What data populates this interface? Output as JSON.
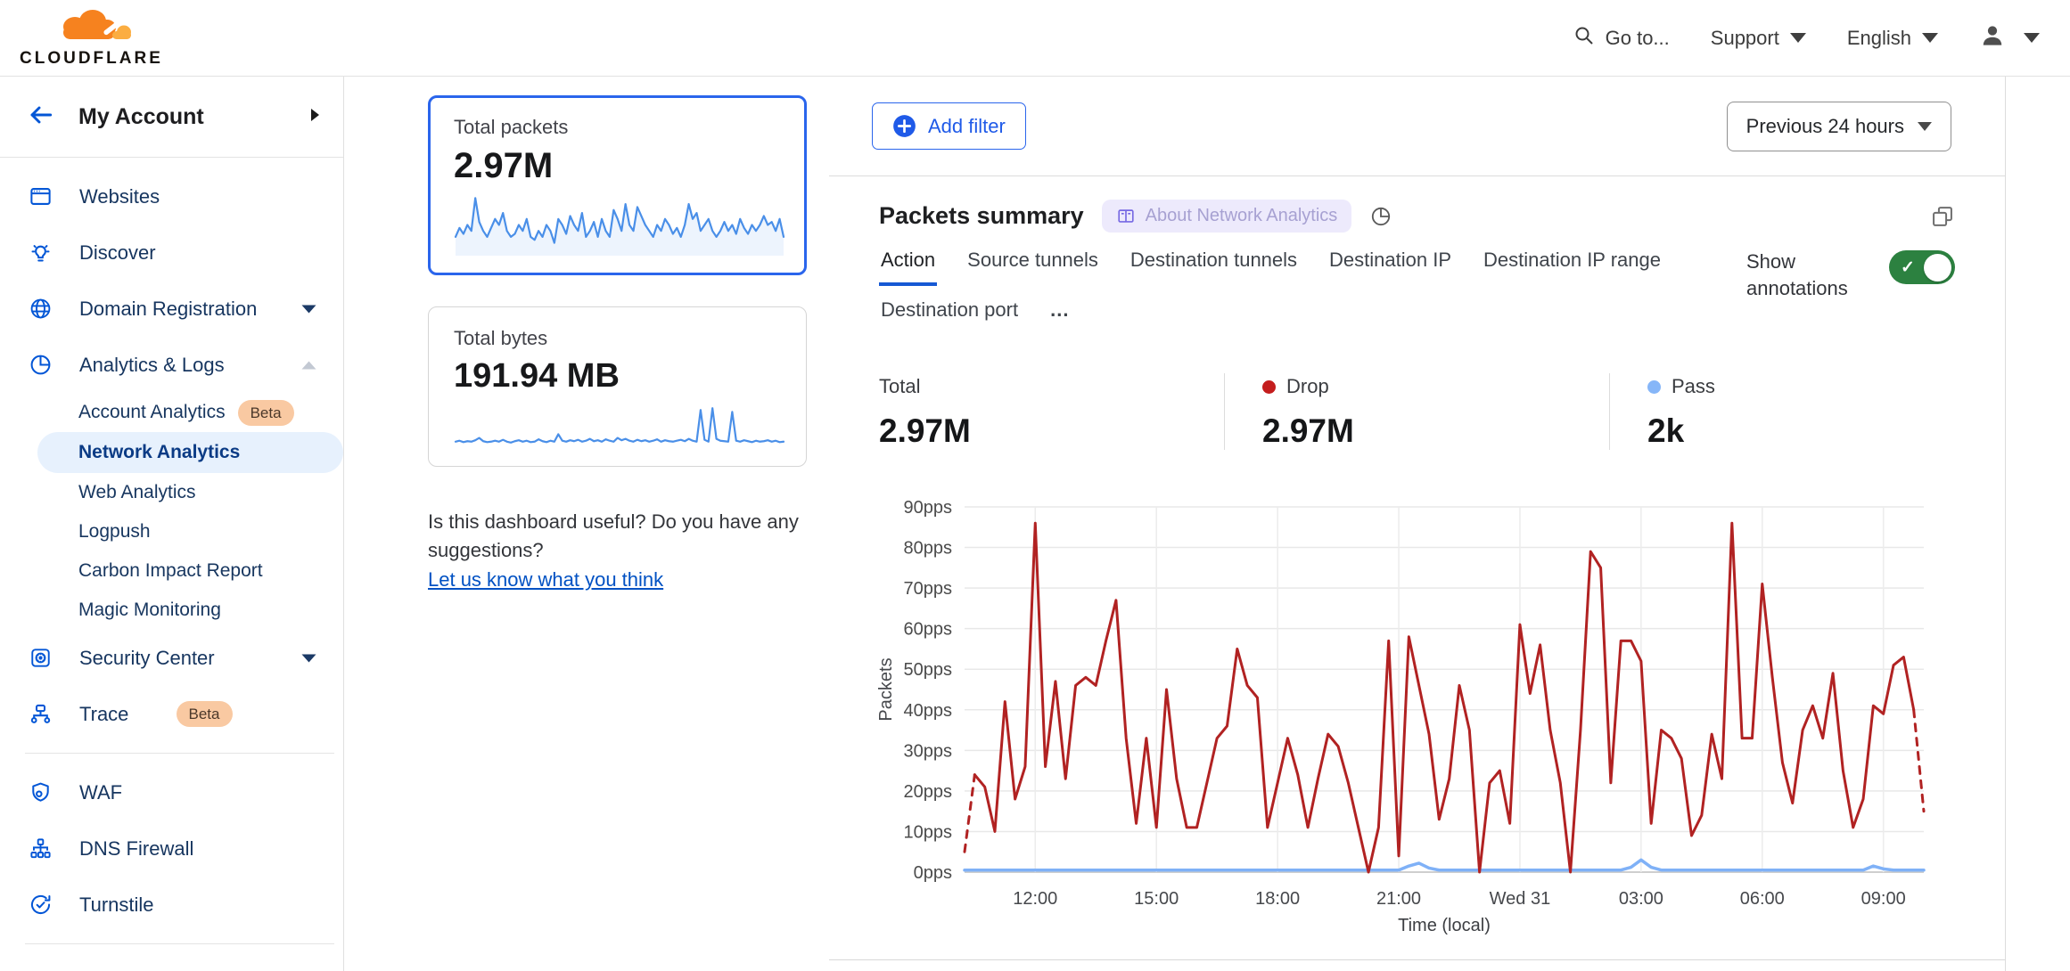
{
  "brand": {
    "name": "CLOUDFLARE"
  },
  "header": {
    "go_to": "Go to...",
    "support": "Support",
    "language": "English"
  },
  "colors": {
    "accent_blue": "#2a65ec",
    "link_blue": "#0051c3",
    "nav_blue": "#0356d6",
    "drop_red": "#b12222",
    "pass_blue": "#7fb1f7",
    "toggle_green": "#2c8140",
    "beta_badge_bg": "#f9c9a2",
    "about_pill_bg": "#edeafc"
  },
  "sidebar": {
    "back_label": "My Account",
    "sections": [
      {
        "items": [
          {
            "label": "Websites",
            "icon": "browser-window"
          },
          {
            "label": "Discover",
            "icon": "lightbulb"
          },
          {
            "label": "Domain Registration",
            "icon": "globe",
            "caret": "down"
          },
          {
            "label": "Analytics & Logs",
            "icon": "pie-chart",
            "caret": "up",
            "children": [
              {
                "label": "Account Analytics",
                "badge": "Beta"
              },
              {
                "label": "Network Analytics",
                "active": true
              },
              {
                "label": "Web Analytics"
              },
              {
                "label": "Logpush"
              },
              {
                "label": "Carbon Impact Report"
              },
              {
                "label": "Magic Monitoring"
              }
            ]
          },
          {
            "label": "Security Center",
            "icon": "security-shield",
            "caret": "down"
          },
          {
            "label": "Trace",
            "icon": "trace-tree",
            "badge": "Beta"
          }
        ]
      },
      {
        "items": [
          {
            "label": "WAF",
            "icon": "waf-shield"
          },
          {
            "label": "DNS Firewall",
            "icon": "dns-hierarchy"
          },
          {
            "label": "Turnstile",
            "icon": "turnstile-check"
          }
        ]
      },
      {
        "items": [
          {
            "label": "",
            "icon": "zero-trust-spark"
          }
        ]
      }
    ]
  },
  "overview": {
    "packets_card": {
      "label": "Total packets",
      "value": "2.97M",
      "selected": true
    },
    "bytes_card": {
      "label": "Total bytes",
      "value": "191.94 MB"
    },
    "feedback": {
      "question": "Is this dashboard useful? Do you have any suggestions?",
      "link": "Let us know what you think"
    }
  },
  "main": {
    "add_filter": "Add filter",
    "time_range": "Previous 24 hours",
    "summary": {
      "title": "Packets summary",
      "about_badge": "About Network Analytics",
      "tabs": [
        {
          "label": "Action",
          "active": true
        },
        {
          "label": "Source tunnels"
        },
        {
          "label": "Destination tunnels"
        },
        {
          "label": "Destination IP"
        },
        {
          "label": "Destination IP range"
        },
        {
          "label": "Destination port"
        },
        {
          "label": "...",
          "more": true
        }
      ],
      "show_annotations": "Show annotations",
      "stats": [
        {
          "label": "Total",
          "value": "2.97M"
        },
        {
          "label": "Drop",
          "value": "2.97M",
          "dot": "#c41d1d"
        },
        {
          "label": "Pass",
          "value": "2k",
          "dot": "#86b6f8"
        }
      ]
    }
  },
  "chart_data": [
    {
      "type": "line",
      "name": "packets-summary-chart",
      "title": "Packets summary",
      "ylabel": "Packets",
      "xlabel": "Time (local)",
      "ylim": [
        0,
        90
      ],
      "y_ticks": [
        "0pps",
        "10pps",
        "20pps",
        "30pps",
        "40pps",
        "50pps",
        "60pps",
        "70pps",
        "80pps",
        "90pps"
      ],
      "x_ticks": [
        {
          "label": "12:00",
          "index": 7
        },
        {
          "label": "15:00",
          "index": 19
        },
        {
          "label": "18:00",
          "index": 31
        },
        {
          "label": "21:00",
          "index": 43
        },
        {
          "label": "Wed 31",
          "index": 55
        },
        {
          "label": "03:00",
          "index": 67
        },
        {
          "label": "06:00",
          "index": 79
        },
        {
          "label": "09:00",
          "index": 91
        }
      ],
      "interval_minutes": 15,
      "grid": true,
      "legend_position": "none",
      "dashed_ends": true,
      "series": [
        {
          "name": "Drop",
          "color": "#b12222",
          "values": [
            5,
            24,
            21,
            10,
            42,
            18,
            26,
            86,
            26,
            47,
            23,
            46,
            48,
            46,
            57,
            67,
            33,
            12,
            33,
            11,
            45,
            23,
            11,
            11,
            22,
            33,
            36,
            55,
            46,
            43,
            11,
            22,
            33,
            24,
            11,
            23,
            34,
            31,
            22,
            11,
            0,
            11,
            57,
            4,
            58,
            46,
            34,
            13,
            23,
            46,
            35,
            0,
            22,
            25,
            12,
            61,
            44,
            56,
            35,
            22,
            0,
            35,
            79,
            75,
            22,
            57,
            57,
            52,
            12,
            35,
            33,
            28,
            9,
            14,
            34,
            23,
            86,
            33,
            33,
            71,
            48,
            27,
            17,
            35,
            41,
            33,
            49,
            25,
            11,
            18,
            41,
            39,
            51,
            53,
            40,
            15
          ]
        },
        {
          "name": "Pass",
          "color": "#7fb1f7",
          "values": [
            0.5,
            0.5,
            0.5,
            0.5,
            0.5,
            0.5,
            0.5,
            0.5,
            0.5,
            0.5,
            0.5,
            0.5,
            0.5,
            0.5,
            0.5,
            0.5,
            0.5,
            0.5,
            0.5,
            0.5,
            0.5,
            0.5,
            0.5,
            0.5,
            0.5,
            0.5,
            0.5,
            0.5,
            0.5,
            0.5,
            0.5,
            0.5,
            0.5,
            0.5,
            0.5,
            0.5,
            0.5,
            0.5,
            0.5,
            0.5,
            0.5,
            0.5,
            0.5,
            0.5,
            1.5,
            2.2,
            1.0,
            0.5,
            0.5,
            0.5,
            0.5,
            0.5,
            0.5,
            0.5,
            0.5,
            0.5,
            0.5,
            0.5,
            0.5,
            0.5,
            0.5,
            0.5,
            0.5,
            0.5,
            0.5,
            0.5,
            1.2,
            3.0,
            1.2,
            0.5,
            0.5,
            0.5,
            0.5,
            0.5,
            0.5,
            0.5,
            0.5,
            0.5,
            0.5,
            0.5,
            0.5,
            0.5,
            0.5,
            0.5,
            0.5,
            0.5,
            0.5,
            0.5,
            0.5,
            0.5,
            1.5,
            0.8,
            0.5,
            0.5,
            0.5,
            0.5
          ]
        }
      ]
    },
    {
      "type": "line",
      "name": "total-packets-sparkline",
      "color": "#4a8fe8",
      "fill": "rgba(74,143,232,0.10)",
      "ymax": 10,
      "values": [
        3,
        4.5,
        3.5,
        5,
        4,
        9.5,
        5.5,
        4,
        3,
        4.5,
        6,
        5,
        7,
        4,
        3,
        3.5,
        5,
        4,
        6,
        3,
        2.5,
        4,
        3,
        5,
        4,
        2,
        6,
        5,
        3.5,
        6.5,
        5,
        4,
        7,
        3,
        4,
        5.5,
        3,
        6,
        4,
        3,
        7.5,
        6,
        4,
        8.5,
        5,
        4,
        8,
        6.5,
        5,
        4,
        3,
        5,
        4,
        6,
        5,
        3.5,
        4.5,
        3,
        5,
        8.5,
        6,
        7,
        4,
        5,
        6,
        4,
        3,
        4,
        5.5,
        4,
        5,
        3.5,
        6,
        4.5,
        3.5,
        5,
        4,
        5,
        6.5,
        5,
        5.5,
        4,
        6,
        3
      ]
    },
    {
      "type": "line",
      "name": "total-bytes-sparkline",
      "color": "#4a8fe8",
      "ymax": 9,
      "values": [
        1,
        1.2,
        0.9,
        1.1,
        1,
        1.3,
        1.8,
        1.1,
        0.9,
        1,
        1.2,
        1,
        1.4,
        1,
        0.8,
        1.1,
        1.3,
        1,
        1.2,
        0.9,
        1,
        1.5,
        1.1,
        0.9,
        1.2,
        1,
        2.6,
        1.2,
        1,
        1.3,
        1.1,
        1.4,
        1,
        1.2,
        1.6,
        1.1,
        1.3,
        1,
        1.5,
        1.2,
        1,
        1.8,
        1.3,
        1.6,
        1.2,
        1,
        1.4,
        1.1,
        1.3,
        1,
        1.2,
        1.5,
        1,
        1.3,
        1.1,
        1,
        1.2,
        1.4,
        1.1,
        1.6,
        1.2,
        1,
        7.8,
        1.4,
        1,
        8.2,
        1.6,
        1.2,
        1.1,
        1,
        7.4,
        1.2,
        1,
        1.3,
        1.1,
        0.9,
        1.2,
        1,
        1.1,
        1.3,
        1,
        1.2,
        0.9,
        1
      ]
    }
  ]
}
